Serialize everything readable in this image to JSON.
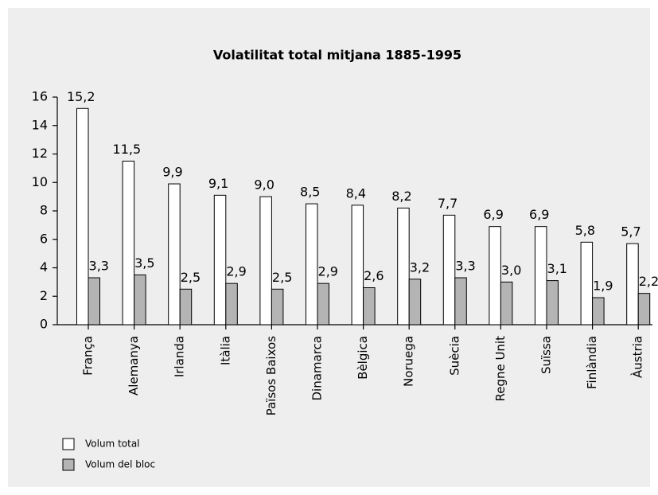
{
  "chart_data": {
    "type": "bar",
    "title": "Volatilitat total mitjana 1885-1995",
    "categories": [
      "França",
      "Alemanya",
      "Irlanda",
      "Itàlia",
      "Països Baixos",
      "Dinamarca",
      "Bèlgica",
      "Noruega",
      "Suècia",
      "Regne Unit",
      "Suïssa",
      "Finlàndia",
      "Àustria"
    ],
    "series": [
      {
        "name": "Volum total",
        "color": "#ffffff",
        "values": [
          15.2,
          11.5,
          9.9,
          9.1,
          9.0,
          8.5,
          8.4,
          8.2,
          7.7,
          6.9,
          6.9,
          5.8,
          5.7
        ],
        "value_labels": [
          "15,2",
          "11,5",
          "9,9",
          "9,1",
          "9,0",
          "8,5",
          "8,4",
          "8,2",
          "7,7",
          "6,9",
          "6,9",
          "5,8",
          "5,7"
        ]
      },
      {
        "name": "Volum del bloc",
        "color": "#b4b4b4",
        "values": [
          3.3,
          3.5,
          2.5,
          2.9,
          2.5,
          2.9,
          2.6,
          3.2,
          3.3,
          3.0,
          3.1,
          1.9,
          2.2
        ],
        "value_labels": [
          "3,3",
          "3,5",
          "2,5",
          "2,9",
          "2,5",
          "2,9",
          "2,6",
          "3,2",
          "3,3",
          "3,0",
          "3,1",
          "1,9",
          "2,2"
        ]
      }
    ],
    "ylim": [
      0,
      16
    ],
    "yticks": [
      0,
      2,
      4,
      6,
      8,
      10,
      12,
      14,
      16
    ],
    "legend": "bottom-left"
  }
}
